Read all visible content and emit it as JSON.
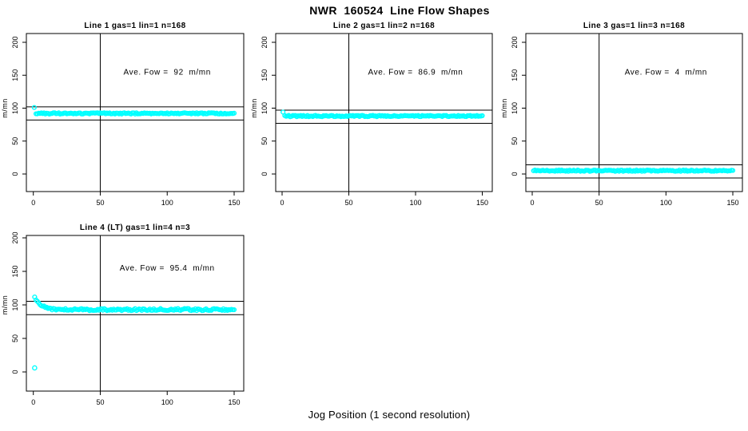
{
  "title": "NWR  160524  Line Flow Shapes",
  "xlabel": "Jog Position (1 second resolution)",
  "colors": {
    "points": "#00FFFF",
    "axis": "#000000",
    "background": "#FFFFFF"
  },
  "chart_data": [
    {
      "type": "scatter",
      "title": "Line 1 gas=1 lin=1 n=168",
      "annotation": "Ave. Fow =  92  m/mn",
      "ave_flow": 92,
      "ylabel": "m/mn",
      "x_ticks": [
        0,
        50,
        100,
        150
      ],
      "y_ticks": [
        0,
        50,
        100,
        150,
        200
      ],
      "xlim": [
        -5,
        157
      ],
      "ylim": [
        -26,
        213
      ],
      "grid": false,
      "vline_x": 50,
      "hlines": [
        102,
        82
      ],
      "series": {
        "shape": "flat",
        "x_start": 2,
        "x_end": 150,
        "step": 1,
        "base_y": 92,
        "noise": 1.0,
        "start_bump": [
          0.7,
          101
        ],
        "outliers": []
      }
    },
    {
      "type": "scatter",
      "title": "Line 2 gas=1 lin=2 n=168",
      "annotation": "Ave. Fow =  86.9  m/mn",
      "ave_flow": 86.9,
      "ylabel": "m/mn",
      "x_ticks": [
        0,
        50,
        100,
        150
      ],
      "y_ticks": [
        0,
        50,
        100,
        150,
        200
      ],
      "xlim": [
        -5,
        157
      ],
      "ylim": [
        -26,
        213
      ],
      "grid": false,
      "vline_x": 50,
      "hlines": [
        96.9,
        76.9
      ],
      "series": {
        "shape": "flat",
        "x_start": 2,
        "x_end": 150,
        "step": 1,
        "base_y": 88,
        "noise": 1.0,
        "start_bump": [
          0.7,
          94
        ],
        "outliers": []
      }
    },
    {
      "type": "scatter",
      "title": "Line 3 gas=1 lin=3 n=168",
      "annotation": "Ave. Fow =  4  m/mn",
      "ave_flow": 4,
      "ylabel": "m/mn",
      "x_ticks": [
        0,
        50,
        100,
        150
      ],
      "y_ticks": [
        0,
        50,
        100,
        150,
        200
      ],
      "xlim": [
        -5,
        157
      ],
      "ylim": [
        -26,
        213
      ],
      "grid": false,
      "vline_x": 50,
      "hlines": [
        14,
        -6
      ],
      "series": {
        "shape": "flat",
        "x_start": 1,
        "x_end": 150,
        "step": 1,
        "base_y": 5,
        "noise": 1.0,
        "start_bump": null,
        "outliers": []
      }
    },
    {
      "type": "scatter",
      "title": "Line 4 (LT) gas=1 lin=4 n=3",
      "annotation": "Ave. Fow =  95.4  m/mn",
      "ave_flow": 95.4,
      "ylabel": "m/mn",
      "x_ticks": [
        0,
        50,
        100,
        150
      ],
      "y_ticks": [
        0,
        50,
        100,
        150,
        200
      ],
      "xlim": [
        -5,
        157
      ],
      "ylim": [
        -28,
        203
      ],
      "grid": false,
      "vline_x": 50,
      "hlines": [
        105.4,
        85.4
      ],
      "series": {
        "shape": "decay",
        "x_start": 1,
        "x_end": 150,
        "step": 1,
        "base_y": 93,
        "amplitude": 19,
        "tau": 4.5,
        "noise": 1.5,
        "start_bump": null,
        "outliers": [
          [
            1,
            6
          ]
        ]
      }
    }
  ]
}
